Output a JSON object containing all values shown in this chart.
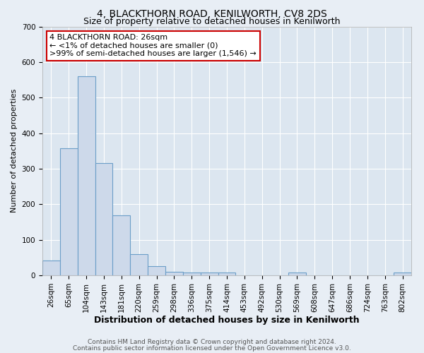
{
  "title": "4, BLACKTHORN ROAD, KENILWORTH, CV8 2DS",
  "subtitle": "Size of property relative to detached houses in Kenilworth",
  "xlabel": "Distribution of detached houses by size in Kenilworth",
  "ylabel": "Number of detached properties",
  "bar_labels": [
    "26sqm",
    "65sqm",
    "104sqm",
    "143sqm",
    "181sqm",
    "220sqm",
    "259sqm",
    "298sqm",
    "336sqm",
    "375sqm",
    "414sqm",
    "453sqm",
    "492sqm",
    "530sqm",
    "569sqm",
    "608sqm",
    "647sqm",
    "686sqm",
    "724sqm",
    "763sqm",
    "802sqm"
  ],
  "bar_heights": [
    42,
    358,
    560,
    315,
    168,
    60,
    25,
    10,
    7,
    7,
    7,
    0,
    0,
    0,
    7,
    0,
    0,
    0,
    0,
    0,
    7
  ],
  "bar_color": "#cdd9ea",
  "bar_edge_color": "#6b9ec8",
  "ylim": [
    0,
    700
  ],
  "yticks": [
    0,
    100,
    200,
    300,
    400,
    500,
    600,
    700
  ],
  "annotation_title": "4 BLACKTHORN ROAD: 26sqm",
  "annotation_line1": "← <1% of detached houses are smaller (0)",
  "annotation_line2": ">99% of semi-detached houses are larger (1,546) →",
  "annotation_box_facecolor": "#ffffff",
  "annotation_box_edgecolor": "#cc0000",
  "footer_line1": "Contains HM Land Registry data © Crown copyright and database right 2024.",
  "footer_line2": "Contains public sector information licensed under the Open Government Licence v3.0.",
  "fig_facecolor": "#e8eef5",
  "plot_facecolor": "#dce6f0",
  "grid_color": "#ffffff",
  "title_fontsize": 10,
  "subtitle_fontsize": 9,
  "xlabel_fontsize": 9,
  "ylabel_fontsize": 8,
  "tick_fontsize": 7.5,
  "footer_fontsize": 6.5,
  "annotation_fontsize": 8
}
